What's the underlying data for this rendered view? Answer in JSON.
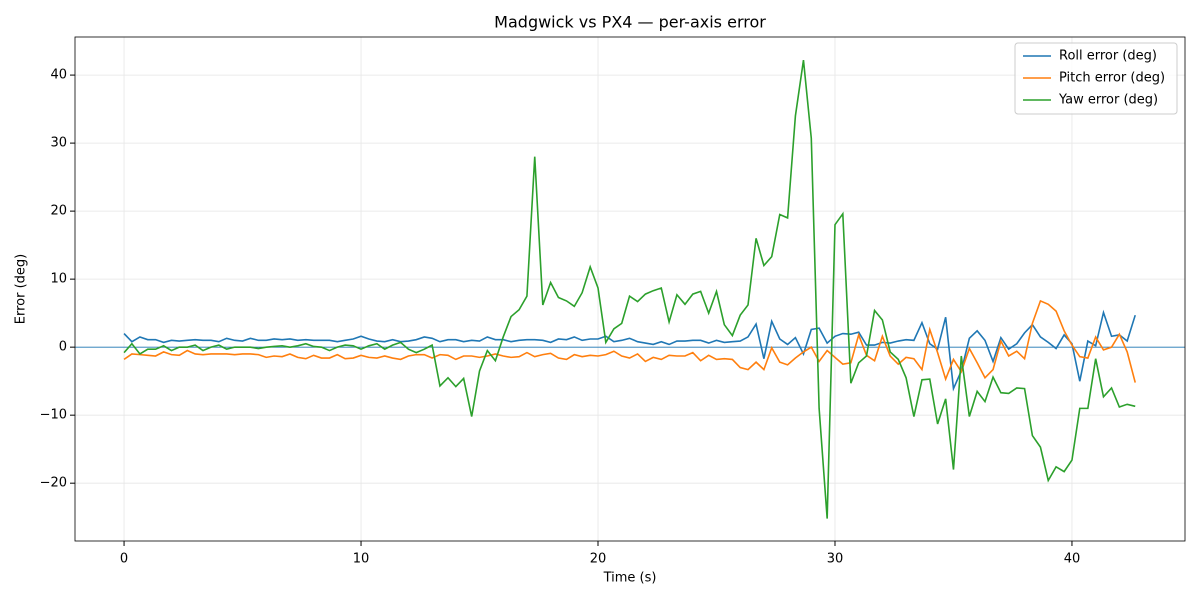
{
  "chart_data": {
    "type": "line",
    "title": "Madgwick vs PX4 — per-axis error",
    "x_label": "Time (s)",
    "y_label": "Error (deg)",
    "x": [
      0,
      0.33,
      0.67,
      1,
      1.33,
      1.67,
      2,
      2.33,
      2.67,
      3,
      3.33,
      3.67,
      4,
      4.33,
      4.67,
      5,
      5.33,
      5.67,
      6,
      6.33,
      6.67,
      7,
      7.33,
      7.67,
      8,
      8.33,
      8.67,
      9,
      9.33,
      9.67,
      10,
      10.33,
      10.67,
      11,
      11.33,
      11.67,
      12,
      12.33,
      12.67,
      13,
      13.33,
      13.67,
      14,
      14.33,
      14.67,
      15,
      15.33,
      15.67,
      16,
      16.33,
      16.67,
      17,
      17.33,
      17.67,
      18,
      18.33,
      18.67,
      19,
      19.33,
      19.67,
      20,
      20.33,
      20.67,
      21,
      21.33,
      21.67,
      22,
      22.33,
      22.67,
      23,
      23.33,
      23.67,
      24,
      24.33,
      24.67,
      25,
      25.33,
      25.67,
      26,
      26.33,
      26.67,
      27,
      27.33,
      27.67,
      28,
      28.33,
      28.67,
      29,
      29.33,
      29.67,
      30,
      30.33,
      30.67,
      31,
      31.33,
      31.67,
      32,
      32.33,
      32.67,
      33,
      33.33,
      33.67,
      34,
      34.33,
      34.67,
      35,
      35.33,
      35.67,
      36,
      36.33,
      36.67,
      37,
      37.33,
      37.67,
      38,
      38.33,
      38.67,
      39,
      39.33,
      39.67,
      40,
      40.33,
      40.67,
      41,
      41.33,
      41.67,
      42,
      42.33,
      42.67
    ],
    "series": [
      {
        "name": "Roll error (deg)",
        "color": "#1f77b4",
        "values": [
          2,
          0.8,
          1.5,
          1.1,
          1.1,
          0.7,
          1,
          0.9,
          1,
          1.1,
          1,
          1,
          0.8,
          1.3,
          1,
          0.9,
          1.3,
          1,
          1,
          1.2,
          1.1,
          1.2,
          1,
          1.1,
          1,
          1,
          1,
          0.8,
          1,
          1.2,
          1.6,
          1.2,
          0.9,
          0.8,
          1.1,
          0.8,
          0.9,
          1.1,
          1.5,
          1.3,
          0.8,
          1.1,
          1.1,
          0.8,
          1,
          0.9,
          1.5,
          1.1,
          1.1,
          0.8,
          1,
          1.1,
          1.1,
          1,
          0.7,
          1.2,
          1.1,
          1.5,
          1,
          1.2,
          1.2,
          1.6,
          0.8,
          1,
          1.3,
          0.8,
          0.6,
          0.4,
          0.8,
          0.4,
          0.9,
          0.9,
          1,
          1,
          0.6,
          1,
          0.7,
          0.8,
          0.9,
          1.5,
          3.4,
          -1.7,
          3.8,
          1.2,
          0.4,
          1.4,
          -1,
          2.6,
          2.8,
          0.6,
          1.6,
          2,
          1.9,
          2.2,
          0.3,
          0.3,
          0.7,
          0.6,
          0.9,
          1.1,
          1,
          3.6,
          0.5,
          -0.3,
          4.4,
          -6.1,
          -3.5,
          1.3,
          2.4,
          1,
          -2.1,
          1.4,
          -0.3,
          0.5,
          2.1,
          3.3,
          1.5,
          0.7,
          -0.2,
          1.8,
          0.5,
          -5,
          0.9,
          0.2,
          5.1,
          1.6,
          1.8,
          0.9,
          4.7
        ]
      },
      {
        "name": "Pitch error (deg)",
        "color": "#ff7f0e",
        "values": [
          -1.8,
          -1,
          -1.1,
          -1.2,
          -1.3,
          -0.7,
          -1.1,
          -1.2,
          -0.5,
          -1,
          -1.1,
          -1,
          -1,
          -1,
          -1.1,
          -1,
          -1,
          -1.1,
          -1.5,
          -1.3,
          -1.4,
          -1,
          -1.5,
          -1.7,
          -1.2,
          -1.6,
          -1.6,
          -1.1,
          -1.7,
          -1.6,
          -1.2,
          -1.5,
          -1.6,
          -1.3,
          -1.6,
          -1.8,
          -1.3,
          -1.1,
          -1.1,
          -1.6,
          -1.1,
          -1.2,
          -1.8,
          -1.3,
          -1.3,
          -1.5,
          -1.3,
          -1,
          -1.3,
          -1.5,
          -1.4,
          -0.8,
          -1.4,
          -1.1,
          -0.9,
          -1.6,
          -1.8,
          -1.1,
          -1.4,
          -1.2,
          -1.3,
          -1.1,
          -0.6,
          -1.3,
          -1.6,
          -1,
          -2.1,
          -1.5,
          -1.8,
          -1.2,
          -1.3,
          -1.3,
          -0.8,
          -2,
          -1.2,
          -1.8,
          -1.7,
          -1.8,
          -3,
          -3.3,
          -2.2,
          -3.3,
          -0.1,
          -2.2,
          -2.6,
          -1.6,
          -0.7,
          0,
          -2.1,
          -0.5,
          -1.5,
          -2.5,
          -2.3,
          1.8,
          -1.2,
          -2,
          1.6,
          -1.3,
          -2.5,
          -1.5,
          -1.7,
          -3.3,
          2.6,
          -0.8,
          -4.7,
          -1.8,
          -3.6,
          -0.2,
          -2.3,
          -4.5,
          -3.3,
          0.9,
          -1.3,
          -0.6,
          -1.7,
          3.5,
          6.8,
          6.3,
          5.3,
          2.4,
          0.3,
          -1.4,
          -1.6,
          1.5,
          -0.4,
          0,
          1.9,
          -0.7,
          -5.2
        ]
      },
      {
        "name": "Yaw error (deg)",
        "color": "#2ca02c",
        "values": [
          -0.8,
          0.5,
          -1,
          -0.3,
          -0.3,
          0.2,
          -0.5,
          0,
          0,
          0.3,
          -0.5,
          0,
          0.3,
          -0.3,
          0,
          0,
          0,
          -0.2,
          0,
          0.1,
          0.2,
          0,
          0.2,
          0.5,
          0.1,
          0,
          -0.5,
          0,
          0.3,
          0.2,
          -0.3,
          0.2,
          0.5,
          -0.3,
          0.3,
          0.7,
          -0.3,
          -0.8,
          -0.3,
          0.3,
          -5.7,
          -4.5,
          -5.8,
          -4.6,
          -10.2,
          -3.5,
          -0.5,
          -2,
          1.5,
          4.5,
          5.5,
          7.5,
          28,
          6.2,
          9.5,
          7.3,
          6.8,
          6,
          8,
          11.8,
          8.7,
          0.7,
          2.7,
          3.5,
          7.5,
          6.7,
          7.8,
          8.3,
          8.7,
          3.7,
          7.7,
          6.3,
          7.8,
          8.2,
          5,
          8.2,
          3.3,
          1.7,
          4.7,
          6.2,
          16,
          12,
          13.3,
          19.5,
          19,
          34,
          42.2,
          30.7,
          -9,
          -25.2,
          18,
          19.6,
          -5.3,
          -2.3,
          -1.3,
          5.4,
          4,
          -0.7,
          -1.8,
          -4.5,
          -10.2,
          -4.8,
          -4.7,
          -11.3,
          -7.6,
          -18,
          -1.3,
          -10.2,
          -6.5,
          -8,
          -4.4,
          -6.7,
          -6.8,
          -6,
          -6.1,
          -13,
          -14.7,
          -19.6,
          -17.6,
          -18.3,
          -16.6,
          -9,
          -9,
          -1.7,
          -7.3,
          -6,
          -8.8,
          -8.4,
          -8.7
        ]
      }
    ],
    "xlim": [
      -2.07,
      44.77
    ],
    "ylim": [
      -28.5,
      45.6
    ],
    "xticks": [
      0,
      10,
      20,
      30,
      40
    ],
    "yticks": [
      {
        "value": -20,
        "label": "−20"
      },
      {
        "value": -10,
        "label": "−10"
      },
      0,
      10,
      20,
      30,
      40
    ],
    "grid": true,
    "legend": "upper-right",
    "hline": 0,
    "hline_color": "#1f77b4"
  }
}
